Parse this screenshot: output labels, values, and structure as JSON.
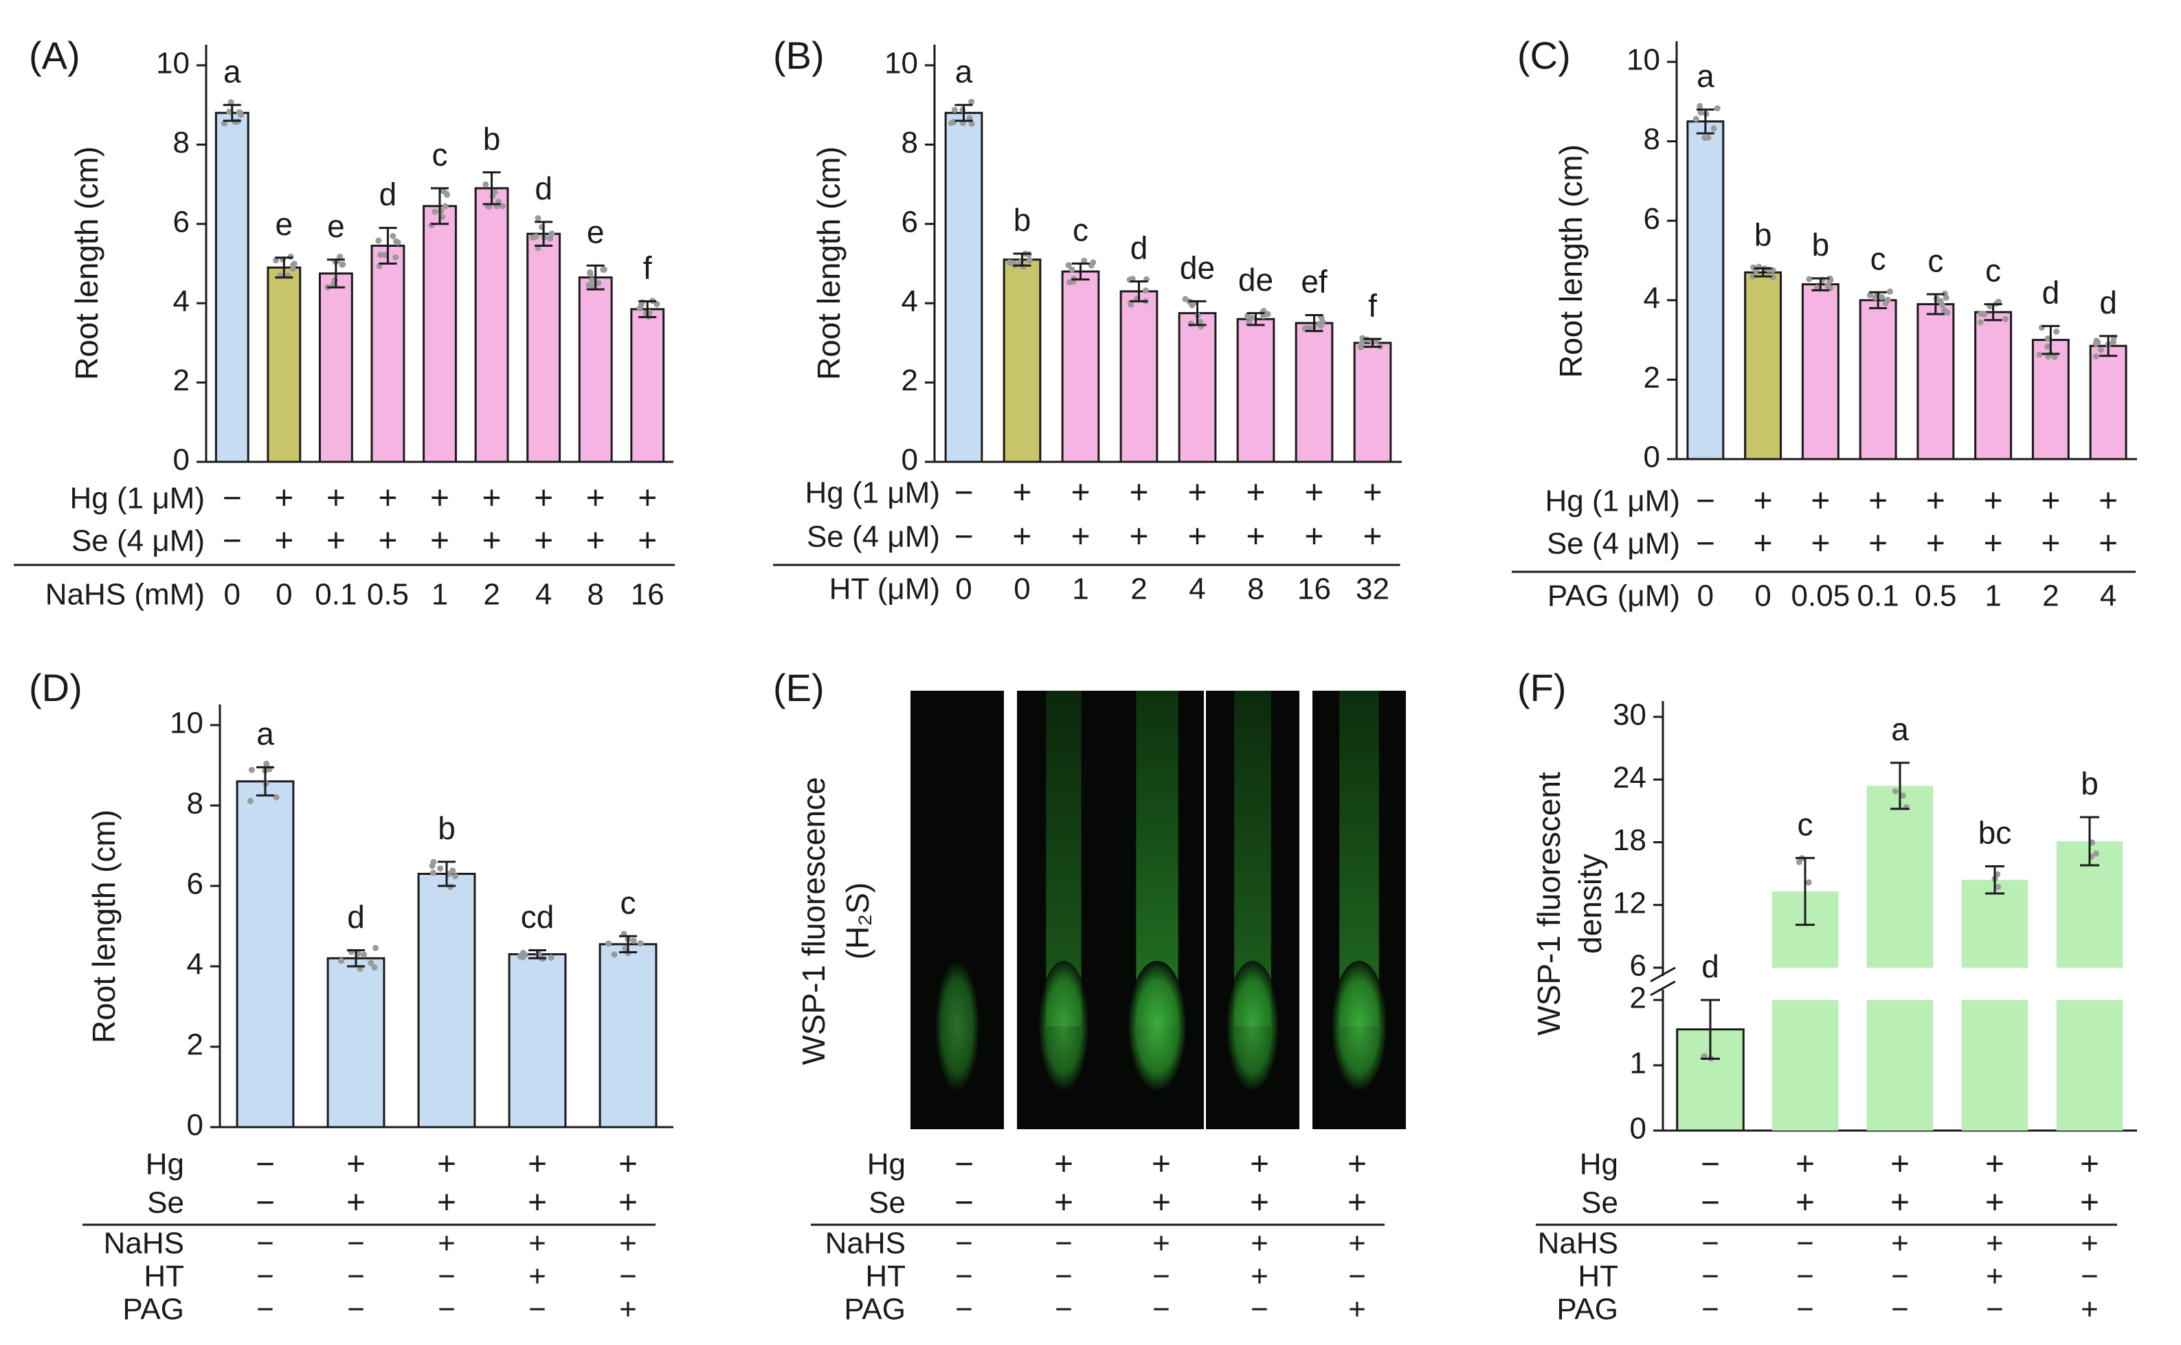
{
  "colors": {
    "control": "#c5dcf3",
    "hgse": "#c8c46a",
    "treatment": "#f5b4e2",
    "panelD": "#c5dcf3",
    "panelF": "#b9efb4",
    "stroke": "#1a1a1a",
    "dots": "#9a9a9a"
  },
  "chart_data": [
    {
      "type": "bar",
      "panel": "(A)",
      "ylabel": "Root length (cm)",
      "ylim": [
        0,
        10
      ],
      "yticks": [
        0,
        2,
        4,
        6,
        8,
        10
      ],
      "values": [
        8.8,
        4.9,
        4.75,
        5.45,
        6.45,
        6.9,
        5.75,
        4.65,
        3.85
      ],
      "errors": [
        0.2,
        0.25,
        0.35,
        0.45,
        0.45,
        0.4,
        0.3,
        0.3,
        0.2
      ],
      "letters": [
        "a",
        "e",
        "e",
        "d",
        "c",
        "b",
        "d",
        "e",
        "f"
      ],
      "bar_colors": [
        "control",
        "hgse",
        "treatment",
        "treatment",
        "treatment",
        "treatment",
        "treatment",
        "treatment",
        "treatment"
      ],
      "rows_top": [
        {
          "label": "Hg (1 μM)",
          "values": [
            "−",
            "+",
            "+",
            "+",
            "+",
            "+",
            "+",
            "+",
            "+"
          ]
        },
        {
          "label": "Se (4 μM)",
          "values": [
            "−",
            "+",
            "+",
            "+",
            "+",
            "+",
            "+",
            "+",
            "+"
          ]
        }
      ],
      "rows_bottom": [
        {
          "label": "NaHS (mM)",
          "values": [
            "0",
            "0",
            "0.1",
            "0.5",
            "1",
            "2",
            "4",
            "8",
            "16"
          ]
        }
      ]
    },
    {
      "type": "bar",
      "panel": "(B)",
      "ylabel": "Root length (cm)",
      "ylim": [
        0,
        10
      ],
      "yticks": [
        0,
        2,
        4,
        6,
        8,
        10
      ],
      "values": [
        8.8,
        5.1,
        4.8,
        4.3,
        3.75,
        3.6,
        3.5,
        3.0
      ],
      "errors": [
        0.2,
        0.15,
        0.2,
        0.25,
        0.3,
        0.15,
        0.2,
        0.1
      ],
      "letters": [
        "a",
        "b",
        "c",
        "d",
        "de",
        "de",
        "ef",
        "f"
      ],
      "bar_colors": [
        "control",
        "hgse",
        "treatment",
        "treatment",
        "treatment",
        "treatment",
        "treatment",
        "treatment"
      ],
      "rows_top": [
        {
          "label": "Hg (1 μM)",
          "values": [
            "−",
            "+",
            "+",
            "+",
            "+",
            "+",
            "+",
            "+"
          ]
        },
        {
          "label": "Se (4 μM)",
          "values": [
            "−",
            "+",
            "+",
            "+",
            "+",
            "+",
            "+",
            "+"
          ]
        }
      ],
      "rows_bottom": [
        {
          "label": "HT (μM)",
          "values": [
            "0",
            "0",
            "1",
            "2",
            "4",
            "8",
            "16",
            "32"
          ]
        }
      ]
    },
    {
      "type": "bar",
      "panel": "(C)",
      "ylabel": "Root length (cm)",
      "ylim": [
        0,
        10
      ],
      "yticks": [
        0,
        2,
        4,
        6,
        8,
        10
      ],
      "values": [
        8.5,
        4.7,
        4.4,
        4.0,
        3.9,
        3.7,
        3.0,
        2.85
      ],
      "errors": [
        0.3,
        0.1,
        0.15,
        0.2,
        0.25,
        0.2,
        0.35,
        0.25
      ],
      "letters": [
        "a",
        "b",
        "b",
        "c",
        "c",
        "c",
        "d",
        "d"
      ],
      "bar_colors": [
        "control",
        "hgse",
        "treatment",
        "treatment",
        "treatment",
        "treatment",
        "treatment",
        "treatment"
      ],
      "rows_top": [
        {
          "label": "Hg (1 μM)",
          "values": [
            "−",
            "+",
            "+",
            "+",
            "+",
            "+",
            "+",
            "+"
          ]
        },
        {
          "label": "Se (4 μM)",
          "values": [
            "−",
            "+",
            "+",
            "+",
            "+",
            "+",
            "+",
            "+"
          ]
        }
      ],
      "rows_bottom": [
        {
          "label": "PAG (μM)",
          "values": [
            "0",
            "0",
            "0.05",
            "0.1",
            "0.5",
            "1",
            "2",
            "4"
          ]
        }
      ]
    },
    {
      "type": "bar",
      "panel": "(D)",
      "ylabel": "Root length (cm)",
      "ylim": [
        0,
        10
      ],
      "yticks": [
        0,
        2,
        4,
        6,
        8,
        10
      ],
      "values": [
        8.6,
        4.2,
        6.3,
        4.3,
        4.55
      ],
      "errors": [
        0.35,
        0.2,
        0.3,
        0.1,
        0.2
      ],
      "letters": [
        "a",
        "d",
        "b",
        "cd",
        "c"
      ],
      "bar_colors": [
        "panelD",
        "panelD",
        "panelD",
        "panelD",
        "panelD"
      ],
      "rows_top": [
        {
          "label": "Hg",
          "values": [
            "−",
            "+",
            "+",
            "+",
            "+"
          ]
        },
        {
          "label": "Se",
          "values": [
            "−",
            "+",
            "+",
            "+",
            "+"
          ]
        }
      ],
      "rows_bottom": [
        {
          "label": "NaHS",
          "values": [
            "−",
            "−",
            "+",
            "+",
            "+"
          ]
        },
        {
          "label": "HT",
          "values": [
            "−",
            "−",
            "−",
            "+",
            "−"
          ]
        },
        {
          "label": "PAG",
          "values": [
            "−",
            "−",
            "−",
            "−",
            "+"
          ]
        }
      ]
    },
    {
      "type": "image_panel",
      "panel": "(E)",
      "ylabel_line1": "WSP-1 fluorescence",
      "ylabel_line2": "(H₂S)",
      "rows_top": [
        {
          "label": "Hg",
          "values": [
            "−",
            "+",
            "+",
            "+",
            "+"
          ]
        },
        {
          "label": "Se",
          "values": [
            "−",
            "+",
            "+",
            "+",
            "+"
          ]
        }
      ],
      "rows_bottom": [
        {
          "label": "NaHS",
          "values": [
            "−",
            "−",
            "+",
            "+",
            "+"
          ]
        },
        {
          "label": "HT",
          "values": [
            "−",
            "−",
            "−",
            "+",
            "−"
          ]
        },
        {
          "label": "PAG",
          "values": [
            "−",
            "−",
            "−",
            "−",
            "+"
          ]
        }
      ]
    },
    {
      "type": "bar",
      "panel": "(F)",
      "ylabel_line1": "WSP-1 fluorescent",
      "ylabel_line2": "density",
      "broken_axis": true,
      "yticks_low": [
        0,
        1,
        2
      ],
      "yticks_high": [
        6,
        12,
        18,
        24,
        30
      ],
      "values": [
        1.55,
        13.3,
        23.4,
        14.4,
        18.1
      ],
      "errors": [
        0.45,
        3.2,
        2.2,
        1.3,
        2.3
      ],
      "letters": [
        "d",
        "c",
        "a",
        "bc",
        "b"
      ],
      "bar_colors": [
        "panelF",
        "panelF",
        "panelF",
        "panelF",
        "panelF"
      ],
      "rows_top": [
        {
          "label": "Hg",
          "values": [
            "−",
            "+",
            "+",
            "+",
            "+"
          ]
        },
        {
          "label": "Se",
          "values": [
            "−",
            "+",
            "+",
            "+",
            "+"
          ]
        }
      ],
      "rows_bottom": [
        {
          "label": "NaHS",
          "values": [
            "−",
            "−",
            "+",
            "+",
            "+"
          ]
        },
        {
          "label": "HT",
          "values": [
            "−",
            "−",
            "−",
            "+",
            "−"
          ]
        },
        {
          "label": "PAG",
          "values": [
            "−",
            "−",
            "−",
            "−",
            "+"
          ]
        }
      ]
    }
  ]
}
